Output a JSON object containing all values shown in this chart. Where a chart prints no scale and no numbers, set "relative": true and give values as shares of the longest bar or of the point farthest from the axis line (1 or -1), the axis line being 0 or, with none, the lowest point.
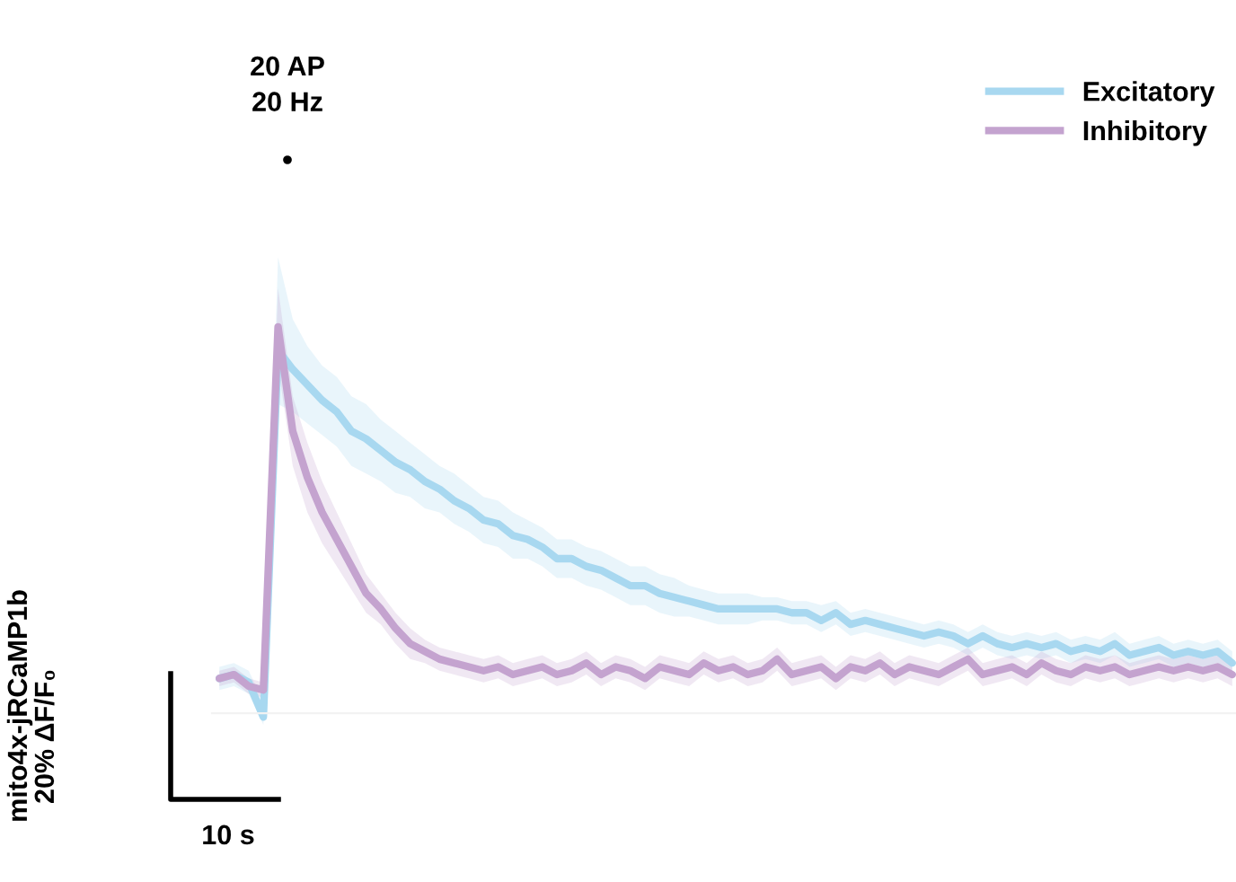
{
  "chart_data": {
    "type": "line",
    "relative": true,
    "annotations": [
      "20 AP\n20 Hz",
      "20% ΔF/F₀",
      "10 s",
      "mito4x-jRCaMP1b"
    ],
    "legend": "top right",
    "categories": [
      null,
      null,
      null,
      null,
      null,
      null,
      null,
      null,
      null,
      null,
      null,
      null,
      null,
      null,
      null,
      null,
      null,
      null,
      null,
      null,
      null,
      null,
      null,
      null,
      null,
      null,
      null,
      null,
      null,
      null,
      null,
      null,
      null,
      null,
      null,
      null,
      null,
      null,
      null,
      null,
      null,
      null,
      null,
      null,
      null,
      null,
      null,
      null,
      null,
      null,
      null,
      null,
      null,
      null,
      null,
      null,
      null,
      null,
      null,
      null,
      null,
      null,
      null,
      null,
      null,
      null,
      null,
      null,
      null,
      null
    ],
    "series": [
      {
        "name": "Excitatory",
        "color": "#a8d8f0",
        "values": [
          0.09,
          0.1,
          0.08,
          -0.01,
          0.94,
          0.89,
          0.85,
          0.81,
          0.78,
          0.73,
          0.71,
          0.68,
          0.65,
          0.63,
          0.6,
          0.58,
          0.55,
          0.53,
          0.5,
          0.49,
          0.46,
          0.45,
          0.43,
          0.4,
          0.4,
          0.38,
          0.37,
          0.35,
          0.33,
          0.33,
          0.31,
          0.3,
          0.29,
          0.28,
          0.27,
          0.27,
          0.27,
          0.27,
          0.27,
          0.26,
          0.26,
          0.24,
          0.26,
          0.23,
          0.24,
          0.23,
          0.22,
          0.21,
          0.2,
          0.21,
          0.2,
          0.18,
          0.2,
          0.18,
          0.17,
          0.18,
          0.17,
          0.18,
          0.16,
          0.17,
          0.16,
          0.18,
          0.15,
          0.16,
          0.17,
          0.15,
          0.16,
          0.15,
          0.16,
          0.13
        ],
        "upper": [
          0.12,
          0.13,
          0.11,
          0.03,
          1.18,
          1.02,
          0.95,
          0.9,
          0.87,
          0.82,
          0.8,
          0.76,
          0.73,
          0.7,
          0.67,
          0.64,
          0.62,
          0.59,
          0.56,
          0.55,
          0.52,
          0.5,
          0.48,
          0.45,
          0.45,
          0.43,
          0.42,
          0.4,
          0.38,
          0.38,
          0.36,
          0.35,
          0.33,
          0.32,
          0.31,
          0.31,
          0.31,
          0.3,
          0.3,
          0.29,
          0.29,
          0.28,
          0.29,
          0.26,
          0.27,
          0.26,
          0.25,
          0.24,
          0.23,
          0.24,
          0.23,
          0.21,
          0.23,
          0.21,
          0.2,
          0.21,
          0.2,
          0.21,
          0.19,
          0.2,
          0.19,
          0.21,
          0.18,
          0.19,
          0.2,
          0.18,
          0.19,
          0.18,
          0.19,
          0.16
        ],
        "lower": [
          0.06,
          0.07,
          0.05,
          -0.03,
          0.8,
          0.78,
          0.75,
          0.72,
          0.69,
          0.64,
          0.62,
          0.6,
          0.57,
          0.56,
          0.53,
          0.52,
          0.49,
          0.47,
          0.44,
          0.43,
          0.4,
          0.4,
          0.38,
          0.35,
          0.35,
          0.33,
          0.32,
          0.3,
          0.28,
          0.28,
          0.26,
          0.25,
          0.25,
          0.24,
          0.23,
          0.23,
          0.23,
          0.24,
          0.24,
          0.23,
          0.23,
          0.21,
          0.23,
          0.2,
          0.21,
          0.2,
          0.19,
          0.18,
          0.17,
          0.18,
          0.17,
          0.15,
          0.17,
          0.15,
          0.14,
          0.15,
          0.14,
          0.15,
          0.13,
          0.14,
          0.13,
          0.15,
          0.12,
          0.13,
          0.14,
          0.12,
          0.13,
          0.12,
          0.13,
          0.1
        ]
      },
      {
        "name": "Inhibitory",
        "color": "#c4a3cf",
        "values": [
          0.09,
          0.1,
          0.07,
          0.06,
          1.0,
          0.73,
          0.61,
          0.52,
          0.45,
          0.38,
          0.31,
          0.27,
          0.22,
          0.18,
          0.16,
          0.14,
          0.13,
          0.12,
          0.11,
          0.12,
          0.1,
          0.11,
          0.12,
          0.1,
          0.11,
          0.13,
          0.1,
          0.12,
          0.11,
          0.09,
          0.12,
          0.11,
          0.1,
          0.13,
          0.11,
          0.12,
          0.1,
          0.11,
          0.14,
          0.1,
          0.11,
          0.12,
          0.09,
          0.12,
          0.11,
          0.13,
          0.1,
          0.12,
          0.11,
          0.1,
          0.12,
          0.14,
          0.1,
          0.11,
          0.12,
          0.1,
          0.13,
          0.11,
          0.1,
          0.12,
          0.11,
          0.12,
          0.1,
          0.11,
          0.12,
          0.11,
          0.12,
          0.11,
          0.12,
          0.1
        ],
        "upper": [
          0.11,
          0.12,
          0.09,
          0.08,
          1.1,
          0.82,
          0.7,
          0.6,
          0.52,
          0.44,
          0.36,
          0.31,
          0.26,
          0.22,
          0.19,
          0.17,
          0.16,
          0.15,
          0.14,
          0.15,
          0.13,
          0.14,
          0.15,
          0.13,
          0.14,
          0.16,
          0.13,
          0.15,
          0.14,
          0.12,
          0.15,
          0.14,
          0.13,
          0.16,
          0.14,
          0.15,
          0.13,
          0.14,
          0.17,
          0.13,
          0.14,
          0.15,
          0.12,
          0.15,
          0.14,
          0.16,
          0.13,
          0.15,
          0.14,
          0.13,
          0.15,
          0.17,
          0.13,
          0.14,
          0.15,
          0.13,
          0.16,
          0.14,
          0.13,
          0.15,
          0.14,
          0.15,
          0.13,
          0.14,
          0.15,
          0.14,
          0.15,
          0.14,
          0.15,
          0.13
        ],
        "lower": [
          0.07,
          0.08,
          0.05,
          0.04,
          0.9,
          0.64,
          0.52,
          0.44,
          0.38,
          0.32,
          0.26,
          0.23,
          0.18,
          0.14,
          0.13,
          0.11,
          0.1,
          0.09,
          0.08,
          0.09,
          0.07,
          0.08,
          0.09,
          0.07,
          0.08,
          0.1,
          0.07,
          0.09,
          0.08,
          0.06,
          0.09,
          0.08,
          0.07,
          0.1,
          0.08,
          0.09,
          0.07,
          0.08,
          0.11,
          0.07,
          0.08,
          0.09,
          0.06,
          0.09,
          0.08,
          0.1,
          0.07,
          0.09,
          0.08,
          0.07,
          0.09,
          0.11,
          0.07,
          0.08,
          0.09,
          0.07,
          0.1,
          0.08,
          0.07,
          0.09,
          0.08,
          0.09,
          0.07,
          0.08,
          0.09,
          0.08,
          0.09,
          0.08,
          0.09,
          0.07
        ]
      }
    ]
  }
}
